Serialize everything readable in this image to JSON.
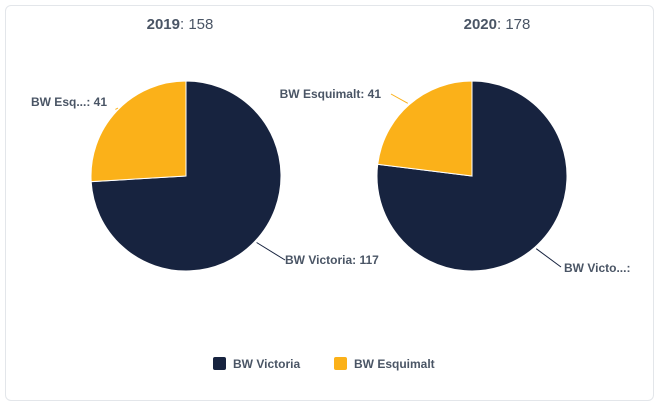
{
  "chart_data": [
    {
      "type": "pie",
      "year_label": "2019",
      "total_label": "158",
      "slices": [
        {
          "name": "BW Victoria",
          "value": 117,
          "label": "BW Victoria: 117"
        },
        {
          "name": "BW Esquimalt",
          "value": 41,
          "label": "BW Esq...: 41"
        }
      ]
    },
    {
      "type": "pie",
      "year_label": "2020",
      "total_label": "178",
      "slices": [
        {
          "name": "BW Victoria",
          "value": 137,
          "label": "BW Victo...:"
        },
        {
          "name": "BW Esquimalt",
          "value": 41,
          "label": "BW Esquimalt: 41"
        }
      ]
    }
  ],
  "legend": [
    {
      "name": "BW Victoria",
      "color": "#17233f"
    },
    {
      "name": "BW Esquimalt",
      "color": "#fbb119"
    }
  ],
  "colors": {
    "BW Victoria": "#17233f",
    "BW Esquimalt": "#fbb119"
  }
}
